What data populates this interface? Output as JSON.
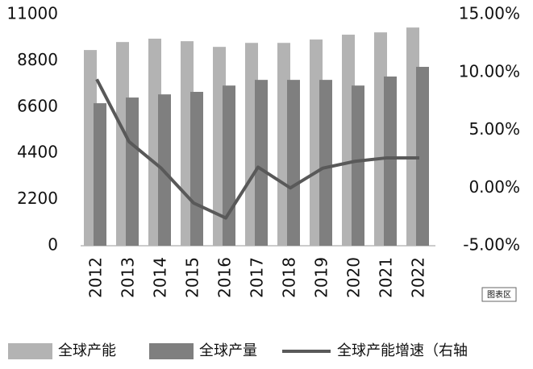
{
  "chart_data": {
    "type": "bar-line",
    "categories": [
      "2012",
      "2013",
      "2014",
      "2015",
      "2016",
      "2017",
      "2018",
      "2019",
      "2020",
      "2021",
      "2022"
    ],
    "series": [
      {
        "name": "全球产能",
        "type": "bar",
        "color": "#b3b3b3",
        "values": [
          9310,
          9690,
          9850,
          9730,
          9460,
          9650,
          9650,
          9810,
          10040,
          10150,
          10380
        ]
      },
      {
        "name": "全球产量",
        "type": "bar",
        "color": "#7f7f7f",
        "values": [
          6780,
          7050,
          7200,
          7320,
          7620,
          7890,
          7890,
          7890,
          7620,
          8050,
          8510
        ]
      },
      {
        "name": "全球产能增速（右轴",
        "type": "line",
        "axis": "y2",
        "color": "#595959",
        "values": [
          9.4,
          4.0,
          1.7,
          -1.3,
          -2.6,
          1.8,
          0.0,
          1.7,
          2.3,
          2.6,
          2.6
        ]
      }
    ],
    "ylim": [
      0,
      11000
    ],
    "yticks": [
      0,
      2200,
      4400,
      6600,
      8800,
      11000
    ],
    "y2lim": [
      -5,
      15
    ],
    "y2ticks": [
      {
        "value": -5,
        "label": "-5.00%"
      },
      {
        "value": 0,
        "label": "0.00%"
      },
      {
        "value": 5,
        "label": "5.00%"
      },
      {
        "value": 10,
        "label": "10.00%"
      },
      {
        "value": 15,
        "label": "15.00%"
      }
    ],
    "legend": "bottom",
    "badge": "图表区"
  }
}
